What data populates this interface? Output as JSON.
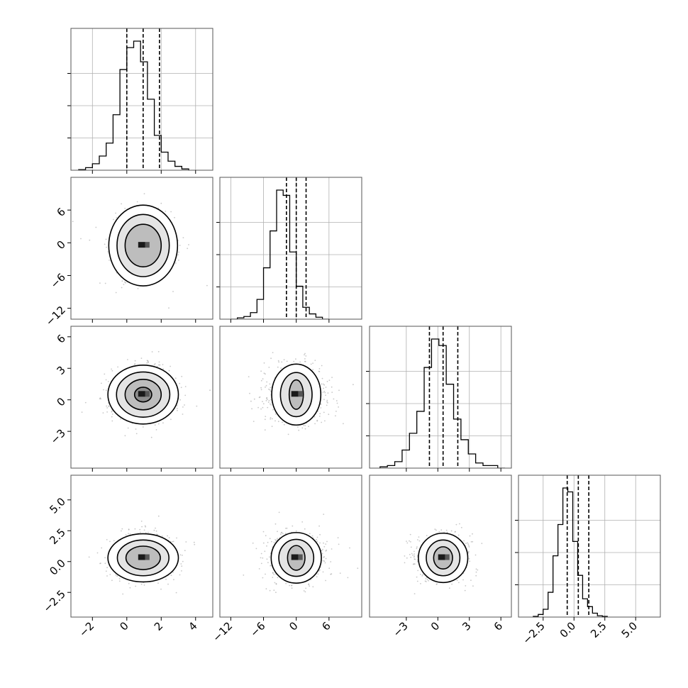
{
  "chart_data": {
    "type": "corner",
    "title": "",
    "parameters": [
      {
        "range": [
          -3.25,
          5.0
        ],
        "ticks": [
          -2,
          0,
          2,
          4
        ],
        "histogram": {
          "start": -2.8,
          "step": 0.4,
          "counts": [
            0.005,
            0.02,
            0.05,
            0.11,
            0.21,
            0.43,
            0.78,
            0.95,
            1.0,
            0.84,
            0.55,
            0.27,
            0.14,
            0.07,
            0.03,
            0.01
          ]
        },
        "quantiles": [
          0.0,
          0.95,
          1.9
        ]
      },
      {
        "range": [
          -14.0,
          12.0
        ],
        "ticks": [
          -12,
          -6,
          0,
          6
        ],
        "histogram": {
          "start": -12.0,
          "step": 1.2,
          "counts": [
            0.0,
            0.01,
            0.02,
            0.05,
            0.15,
            0.39,
            0.67,
            0.98,
            0.94,
            0.51,
            0.25,
            0.09,
            0.04,
            0.015,
            0.0
          ]
        },
        "quantiles": [
          -1.8,
          0.0,
          1.8
        ]
      },
      {
        "range": [
          -6.5,
          7.0
        ],
        "ticks": [
          -3,
          0,
          3,
          6
        ],
        "histogram": {
          "start": -5.5,
          "step": 0.7,
          "counts": [
            0.01,
            0.02,
            0.05,
            0.14,
            0.27,
            0.44,
            0.78,
            1.0,
            0.95,
            0.65,
            0.38,
            0.22,
            0.11,
            0.04,
            0.02,
            0.02,
            0.0
          ]
        },
        "quantiles": [
          -0.8,
          0.5,
          1.9
        ]
      },
      {
        "range": [
          -4.5,
          7.0
        ],
        "ticks": [
          -2.5,
          0.0,
          2.5,
          5.0
        ],
        "histogram": {
          "start": -3.3,
          "step": 0.4,
          "counts": [
            0.005,
            0.02,
            0.06,
            0.19,
            0.47,
            0.71,
            0.99,
            0.96,
            0.58,
            0.32,
            0.14,
            0.08,
            0.03,
            0.01,
            0.005
          ]
        },
        "quantiles": [
          -0.55,
          0.35,
          1.2
        ]
      }
    ],
    "xtick_labels": [
      [
        "−2",
        "0",
        "2",
        "4"
      ],
      [
        "−12",
        "−6",
        "0",
        "6"
      ],
      [
        "−3",
        "0",
        "3",
        "6"
      ],
      [
        "−2.5",
        "0.0",
        "2.5",
        "5.0"
      ]
    ],
    "ytick_labels": {
      "1": [
        "−12",
        "−6",
        "0",
        "6"
      ],
      "2": [
        "−3",
        "0",
        "3",
        "6"
      ],
      "3": [
        "−2.5",
        "0.0",
        "2.5",
        "5.0"
      ]
    },
    "pairs": [
      {
        "row": 1,
        "col": 0,
        "mean": [
          0.95,
          -0.5
        ],
        "sd": [
          1.0,
          3.0
        ],
        "cx": 0.95,
        "cy": -0.5,
        "levels": [
          [
            1.05,
            3.9
          ],
          [
            1.52,
            5.7
          ],
          [
            2.0,
            7.4
          ]
        ],
        "seed": 11
      },
      {
        "row": 2,
        "col": 0,
        "mean": [
          0.95,
          0.5
        ],
        "sd": [
          1.0,
          1.4
        ],
        "cx": 0.95,
        "cy": 0.5,
        "levels": [
          [
            0.5,
            0.7
          ],
          [
            1.05,
            1.45
          ],
          [
            1.55,
            2.15
          ],
          [
            2.05,
            2.8
          ]
        ],
        "seed": 23
      },
      {
        "row": 2,
        "col": 1,
        "mean": [
          0.0,
          0.5
        ],
        "sd": [
          2.9,
          1.4
        ],
        "cx": 0.0,
        "cy": 0.5,
        "levels": [
          [
            1.3,
            1.4
          ],
          [
            2.9,
            2.1
          ],
          [
            4.5,
            2.9
          ]
        ],
        "seed": 37
      },
      {
        "row": 3,
        "col": 0,
        "mean": [
          0.95,
          0.3
        ],
        "sd": [
          1.0,
          0.95
        ],
        "cx": 0.95,
        "cy": 0.3,
        "levels": [
          [
            1.0,
            0.95
          ],
          [
            1.5,
            1.45
          ],
          [
            2.05,
            1.95
          ]
        ],
        "seed": 41
      },
      {
        "row": 3,
        "col": 1,
        "mean": [
          0.0,
          0.3
        ],
        "sd": [
          2.9,
          0.95
        ],
        "cx": 0.0,
        "cy": 0.3,
        "levels": [
          [
            1.6,
            1.0
          ],
          [
            3.2,
            1.5
          ],
          [
            4.6,
            2.05
          ]
        ],
        "seed": 53
      },
      {
        "row": 3,
        "col": 2,
        "mean": [
          0.5,
          0.3
        ],
        "sd": [
          1.4,
          0.95
        ],
        "cx": 0.5,
        "cy": 0.3,
        "levels": [
          [
            0.9,
            0.9
          ],
          [
            1.6,
            1.45
          ],
          [
            2.35,
            2.0
          ]
        ],
        "seed": 67
      }
    ],
    "grid": true,
    "legend": "none"
  }
}
